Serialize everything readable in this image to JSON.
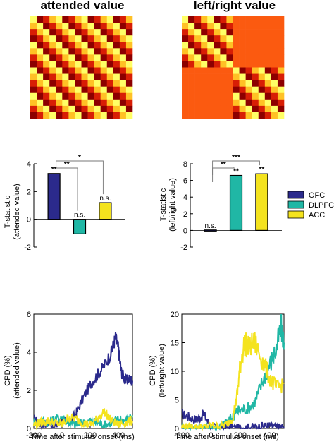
{
  "colors": {
    "OFC": "#2b2a8c",
    "DLPFC": "#20b7a5",
    "ACC": "#f4e31e",
    "heat": [
      "#8c0000",
      "#d81e05",
      "#fb6b0e",
      "#ffc125",
      "#ffff66"
    ],
    "block_flat": "#fb5a10"
  },
  "chart_data": [
    {
      "type": "heatmap",
      "title": "attended value",
      "description_grid": "4x4 blocks of 4x4 cells, diagonal gradient pattern"
    },
    {
      "type": "heatmap",
      "title": "left/right value",
      "description_grid": "2x2 blocks; diagonal blocks with gradient pattern, off-diagonal blocks uniform"
    },
    {
      "type": "bar",
      "ylabel_lines": [
        "T-statistic",
        "(attended value)"
      ],
      "ylim": [
        -2,
        4
      ],
      "yticks": [
        "4",
        "2",
        "0",
        "-2"
      ],
      "categories": [
        "OFC",
        "DLPFC",
        "ACC"
      ],
      "values": [
        3.3,
        -1.05,
        1.2
      ],
      "bar_labels": [
        "**",
        "n.s.",
        "n.s."
      ],
      "comparisons": [
        {
          "from": 0,
          "to": 1,
          "label": "**"
        },
        {
          "from": 0,
          "to": 2,
          "label": "*"
        }
      ]
    },
    {
      "type": "bar",
      "ylabel_lines": [
        "T-statistic",
        "(left/right value)"
      ],
      "ylim": [
        -2,
        8
      ],
      "yticks": [
        "8",
        "6",
        "4",
        "2",
        "0",
        "-2"
      ],
      "categories": [
        "OFC",
        "DLPFC",
        "ACC"
      ],
      "values": [
        0.05,
        6.6,
        6.8
      ],
      "bar_labels": [
        "n.s.",
        "**",
        "**"
      ],
      "comparisons": [
        {
          "from": 0,
          "to": 1,
          "label": "**"
        },
        {
          "from": 0,
          "to": 2,
          "label": "***"
        }
      ],
      "legend": [
        "OFC",
        "DLPFC",
        "ACC"
      ]
    },
    {
      "type": "line",
      "xlabel": "Time after stimulus onset (ms)",
      "ylabel_lines": [
        "CPD (%)",
        "(attended value)"
      ],
      "xlim": [
        -200,
        500
      ],
      "ylim": [
        0,
        6
      ],
      "xticks": [
        "-200",
        "0",
        "200",
        "400"
      ],
      "yticks": [
        "6",
        "4",
        "2",
        "0"
      ],
      "series": [
        {
          "name": "OFC",
          "x": [
            -200,
            -150,
            -100,
            -50,
            0,
            50,
            100,
            150,
            200,
            250,
            300,
            350,
            380,
            400,
            420,
            450,
            480,
            500
          ],
          "y": [
            0.5,
            0.2,
            0.3,
            0.1,
            0.4,
            0.3,
            0.8,
            1.6,
            2.3,
            2.8,
            3.3,
            4.0,
            4.8,
            4.2,
            3.0,
            2.5,
            2.6,
            2.5
          ]
        },
        {
          "name": "DLPFC",
          "x": [
            -200,
            -150,
            -100,
            -50,
            0,
            50,
            100,
            150,
            200,
            250,
            300,
            350,
            400,
            450,
            500
          ],
          "y": [
            0.3,
            0.4,
            0.3,
            0.5,
            0.6,
            0.3,
            0.2,
            0.3,
            0.4,
            0.3,
            0.2,
            0.3,
            0.5,
            0.4,
            0.7
          ]
        },
        {
          "name": "ACC",
          "x": [
            -200,
            -150,
            -100,
            -50,
            0,
            50,
            100,
            150,
            200,
            250,
            300,
            350,
            400,
            450,
            500
          ],
          "y": [
            0.2,
            0.3,
            0.4,
            0.3,
            0.2,
            0.6,
            0.5,
            0.3,
            0.2,
            0.5,
            0.9,
            0.4,
            0.2,
            0.3,
            0.4
          ]
        }
      ]
    },
    {
      "type": "line",
      "xlabel": "Time after stimulus onset (ms)",
      "ylabel_lines": [
        "CPD (%)",
        "(left/right value)"
      ],
      "xlim": [
        -200,
        500
      ],
      "ylim": [
        0,
        20
      ],
      "xticks": [
        "-200",
        "0",
        "200",
        "400"
      ],
      "yticks": [
        "20",
        "15",
        "10",
        "5",
        "0"
      ],
      "series": [
        {
          "name": "OFC",
          "x": [
            -200,
            -150,
            -100,
            -50,
            0,
            50,
            100,
            150,
            200,
            250,
            300,
            350,
            400,
            450,
            500
          ],
          "y": [
            2.5,
            2.0,
            1.5,
            2.5,
            0.3,
            0.2,
            0.1,
            0.2,
            0.1,
            0.2,
            0.3,
            0.4,
            0.5,
            0.2,
            0.3
          ]
        },
        {
          "name": "DLPFC",
          "x": [
            -200,
            -150,
            -100,
            -50,
            0,
            50,
            100,
            150,
            170,
            200,
            250,
            300,
            350,
            400,
            450,
            480,
            500
          ],
          "y": [
            0.2,
            0.1,
            0.2,
            0.1,
            0.2,
            0.3,
            1.0,
            2.0,
            3.0,
            3.2,
            3.5,
            4.5,
            8.0,
            11.0,
            14.0,
            18.0,
            15.0
          ]
        },
        {
          "name": "ACC",
          "x": [
            -200,
            -150,
            -100,
            -50,
            0,
            50,
            100,
            150,
            180,
            200,
            230,
            260,
            300,
            350,
            400,
            450,
            500
          ],
          "y": [
            0.3,
            0.2,
            0.3,
            0.2,
            0.5,
            0.4,
            0.6,
            2.0,
            6.0,
            11.0,
            15.0,
            14.0,
            15.0,
            12.0,
            9.0,
            7.0,
            8.0
          ]
        }
      ]
    }
  ]
}
